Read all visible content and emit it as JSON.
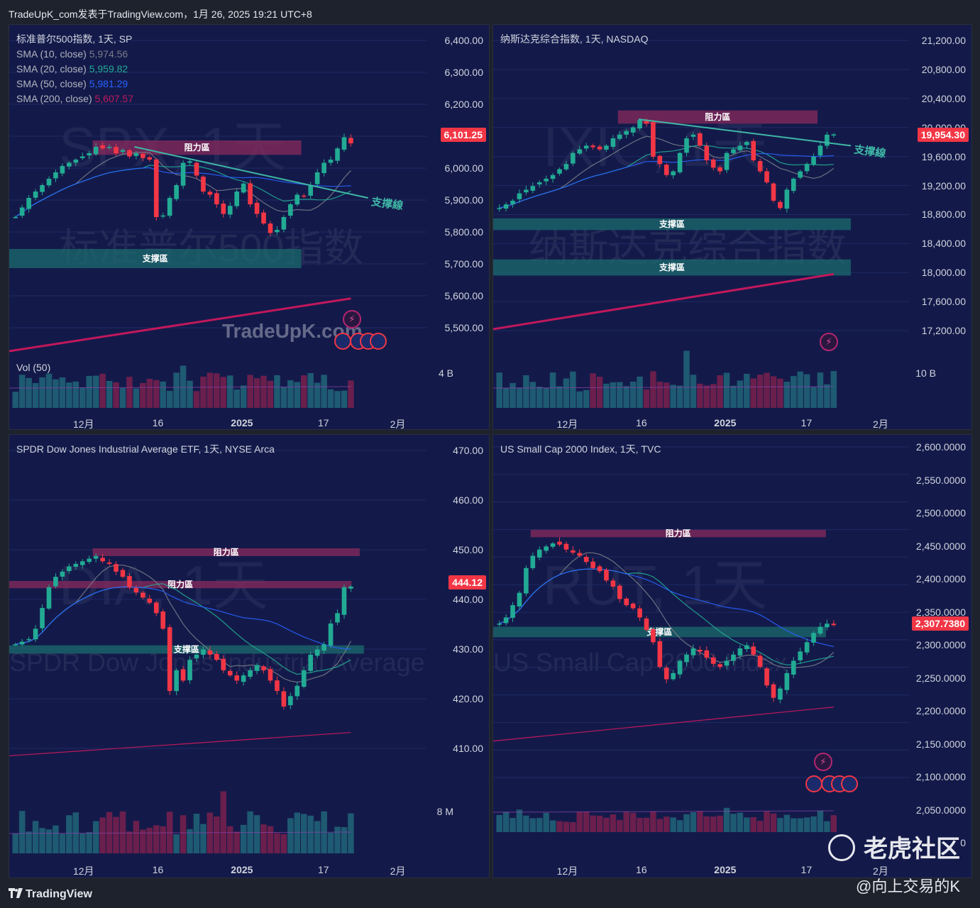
{
  "header": {
    "text": "TradeUpK_com发表于TradingView.com，1月 26, 2025 19:21 UTC+8"
  },
  "footer": {
    "brand": "TradingView",
    "community": "老虎社区",
    "author": "@向上交易的K"
  },
  "colors": {
    "up": "#22ab94",
    "down": "#f23645",
    "resistance": "#8a2a5c",
    "support": "#1c6b6e",
    "sma10": "#787b86",
    "sma20": "#22ab94",
    "sma50": "#2962ff",
    "sma200": "#c2185b"
  },
  "panels": [
    {
      "id": "spx",
      "title": "标准普尔500指数, 1天, SP",
      "watermark": "SPX, 1天",
      "watermark2": "标准普尔500指数",
      "site_watermark": "TradeUpK.com",
      "sma": [
        {
          "label": "SMA (10, close)",
          "value": "5,974.56"
        },
        {
          "label": "SMA (20, close)",
          "value": "5,959.82"
        },
        {
          "label": "SMA (50, close)",
          "value": "5,981.29"
        },
        {
          "label": "SMA (200, close)",
          "value": "5,607.57"
        }
      ],
      "vol_label": "Vol (50)",
      "vol_tick": "4 B",
      "last_price": "6,101.25",
      "yticks": [
        "6,400.00",
        "6,300.00",
        "6,200.00",
        "6,100.00",
        "6,000.00",
        "5,900.00",
        "5,800.00",
        "5,700.00",
        "5,600.00",
        "5,500.00"
      ],
      "xticks": [
        "12月",
        "16",
        "2025",
        "17",
        "2月"
      ],
      "zones": [
        {
          "type": "resistance",
          "label": "阻力區"
        },
        {
          "type": "support",
          "label": "支撑區"
        }
      ],
      "trendline_label": "支撑線"
    },
    {
      "id": "ixic",
      "title": "纳斯达克综合指数, 1天, NASDAQ",
      "watermark": "IXIC, 1天",
      "watermark2": "纳斯达克综合指数",
      "vol_tick": "10 B",
      "last_price": "19,954.30",
      "yticks": [
        "21,200.00",
        "20,800.00",
        "20,400.00",
        "20,000.00",
        "19,600.00",
        "19,200.00",
        "18,800.00",
        "18,400.00",
        "18,000.00",
        "17,600.00",
        "17,200.00"
      ],
      "xticks": [
        "12月",
        "16",
        "2025",
        "17",
        "2月"
      ],
      "zones": [
        {
          "type": "resistance",
          "label": "阻力區"
        },
        {
          "type": "support",
          "label": "支撑區"
        },
        {
          "type": "support",
          "label": "支撑區"
        }
      ],
      "trendline_label": "支撑線"
    },
    {
      "id": "dia",
      "title": "SPDR Dow Jones Industrial Average ETF, 1天, NYSE Arca",
      "watermark": "DIA, 1天",
      "watermark2": "SPDR Dow Jones Industrial Average ETF",
      "vol_tick": "8 M",
      "last_price": "444.12",
      "yticks": [
        "470.00",
        "460.00",
        "450.00",
        "440.00",
        "430.00",
        "420.00",
        "410.00"
      ],
      "xticks": [
        "12月",
        "16",
        "2025",
        "17",
        "2月"
      ],
      "zones": [
        {
          "type": "resistance",
          "label": "阻力區"
        },
        {
          "type": "resistance",
          "label": "阻力區"
        },
        {
          "type": "support",
          "label": "支撑區"
        }
      ]
    },
    {
      "id": "rut",
      "title": "US Small Cap 2000 Index, 1天, TVC",
      "watermark": "RUT, 1天",
      "watermark2": "US Small Cap 2000 Index",
      "last_price": "2,307.7380",
      "yticks": [
        "2,600.0000",
        "2,550.0000",
        "2,500.0000",
        "2,450.0000",
        "2,400.0000",
        "2,350.0000",
        "2,300.0000",
        "2,250.0000",
        "2,200.0000",
        "2,150.0000",
        "2,100.0000",
        "2,050.0000",
        "0"
      ],
      "xticks": [
        "12月",
        "16",
        "2025",
        "17",
        "2月"
      ],
      "zones": [
        {
          "type": "resistance",
          "label": "阻力區"
        },
        {
          "type": "support",
          "label": "支撑區"
        }
      ]
    }
  ],
  "chart_data": [
    {
      "type": "candlestick",
      "title": "标准普尔500指数, 1天, SP",
      "ylim": [
        5450,
        6450
      ],
      "closes": [
        5870,
        5900,
        5930,
        5950,
        5970,
        5990,
        6010,
        6030,
        6040,
        6050,
        6060,
        6070,
        6090,
        6085,
        6090,
        6070,
        6080,
        6060,
        6070,
        6055,
        6050,
        5870,
        5875,
        5930,
        5970,
        6040,
        6045,
        6000,
        5950,
        5940,
        5910,
        5880,
        5905,
        5950,
        5975,
        5910,
        5880,
        5850,
        5820,
        5830,
        5870,
        5910,
        5940,
        5935,
        5970,
        6010,
        6040,
        6050,
        6085,
        6120,
        6101
      ],
      "sma200_range": [
        5450,
        5615
      ],
      "zones": [
        {
          "label": "阻力區",
          "range": [
            6065,
            6110
          ]
        },
        {
          "label": "支撑區",
          "range": [
            5710,
            5770
          ]
        }
      ]
    },
    {
      "type": "candlestick",
      "title": "纳斯达克综合指数, 1天, NASDAQ",
      "ylim": [
        17000,
        21350
      ],
      "closes": [
        18950,
        19000,
        19050,
        19150,
        19200,
        19250,
        19300,
        19350,
        19400,
        19480,
        19550,
        19700,
        19750,
        19800,
        19780,
        19750,
        19800,
        19900,
        19950,
        20000,
        20050,
        20150,
        20100,
        19650,
        19550,
        19400,
        19450,
        19700,
        19900,
        19950,
        19800,
        19600,
        19500,
        19450,
        19700,
        19750,
        19800,
        19850,
        19600,
        19450,
        19300,
        19050,
        18950,
        19200,
        19350,
        19450,
        19550,
        19650,
        19800,
        19950,
        19954
      ],
      "sma200_range": [
        17300,
        18050
      ],
      "zones": [
        {
          "label": "阻力區",
          "range": [
            20100,
            20280
          ]
        },
        {
          "label": "支撑區",
          "range": [
            18650,
            18810
          ]
        },
        {
          "label": "支撑區",
          "range": [
            18030,
            18250
          ]
        }
      ]
    },
    {
      "type": "candlestick",
      "title": "SPDR Dow Jones Industrial Average ETF, 1天, NYSE Arca",
      "ylim": [
        405,
        472
      ],
      "closes": [
        433,
        433.5,
        434,
        436,
        440,
        444,
        446,
        447,
        448,
        448.5,
        449,
        449.5,
        450,
        449,
        448.5,
        447,
        446,
        444,
        443,
        442,
        441,
        439,
        436,
        424,
        428,
        426,
        430,
        431,
        432,
        431,
        430,
        428,
        427,
        426,
        427,
        428,
        429,
        428,
        426,
        424,
        421,
        423,
        425,
        428,
        431,
        432,
        433,
        437,
        439,
        444,
        444.12
      ],
      "sma200_range": [
        411.5,
        416
      ],
      "zones": [
        {
          "label": "阻力區",
          "range": [
            450,
            451.5
          ]
        },
        {
          "label": "阻力區",
          "range": [
            443.8,
            445.2
          ]
        },
        {
          "label": "支撑區",
          "range": [
            431.2,
            432.8
          ]
        }
      ]
    },
    {
      "type": "candlestick",
      "title": "US Small Cap 2000 Index, 1天, TVC",
      "ylim": [
        2030,
        2610
      ],
      "closes": [
        2310,
        2320,
        2340,
        2360,
        2400,
        2420,
        2430,
        2435,
        2440,
        2438,
        2430,
        2425,
        2420,
        2410,
        2400,
        2395,
        2380,
        2370,
        2350,
        2340,
        2335,
        2320,
        2300,
        2280,
        2240,
        2220,
        2230,
        2250,
        2260,
        2270,
        2265,
        2255,
        2245,
        2240,
        2250,
        2260,
        2270,
        2275,
        2260,
        2240,
        2210,
        2190,
        2205,
        2230,
        2250,
        2265,
        2280,
        2295,
        2305,
        2310,
        2307.74
      ],
      "sma200_range": [
        2120,
        2175
      ],
      "zones": [
        {
          "label": "阻力區",
          "range": [
            2450,
            2462
          ]
        },
        {
          "label": "支撑區",
          "range": [
            2288,
            2305
          ]
        }
      ]
    }
  ]
}
